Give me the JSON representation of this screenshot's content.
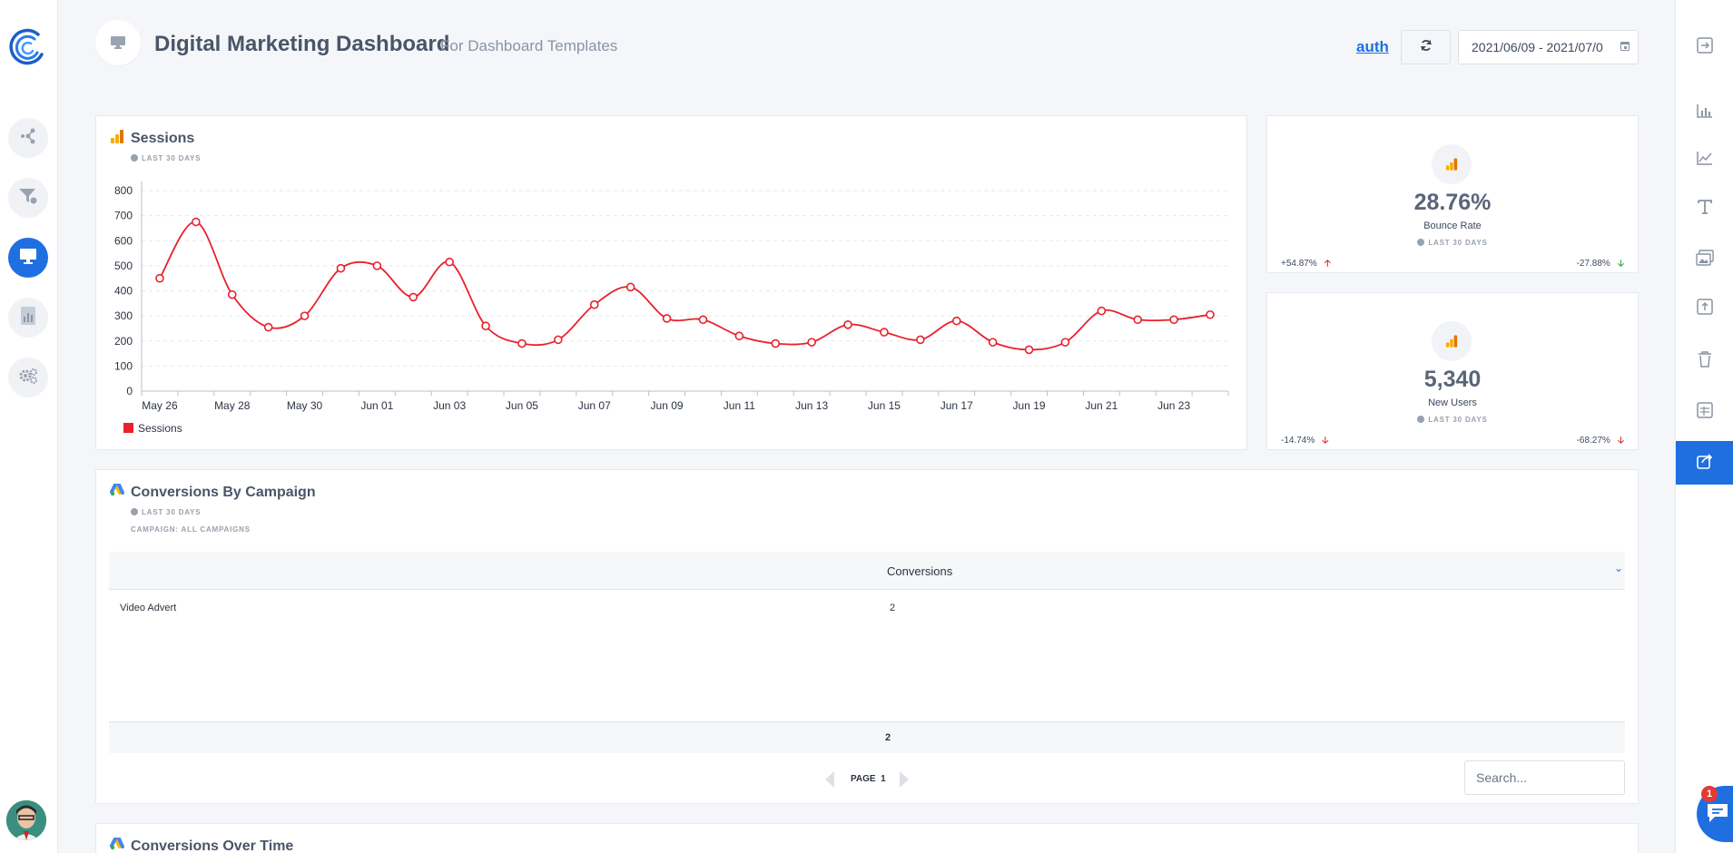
{
  "header": {
    "title": "Digital Marketing Dashboard",
    "subtitle": "For Dashboard Templates",
    "auth_link": "auth",
    "date_range": "2021/06/09 - 2021/07/0"
  },
  "icons": {
    "logo": "logo-icon",
    "left_nav": [
      "connections-icon",
      "funnel-icon",
      "monitor-icon",
      "report-icon",
      "settings-icon"
    ],
    "right_tools": [
      "exit-icon",
      "bar-chart-icon",
      "line-chart-icon",
      "text-icon",
      "image-icon",
      "upload-icon",
      "trash-icon",
      "table-icon",
      "share-icon"
    ]
  },
  "colors": {
    "accent": "#1f6fe0",
    "line": "#e8212d",
    "up_red": "#d9281f",
    "down_green": "#2e9b3c"
  },
  "sessions_card": {
    "title": "Sessions",
    "period": "LAST 30 DAYS"
  },
  "chart_data": {
    "type": "line",
    "title": "Sessions",
    "xlabel": "",
    "ylabel": "",
    "ylim": [
      0,
      800
    ],
    "yticks": [
      0,
      100,
      200,
      300,
      400,
      500,
      600,
      700,
      800
    ],
    "x_tick_labels": [
      "May 26",
      "May 28",
      "May 30",
      "Jun 01",
      "Jun 03",
      "Jun 05",
      "Jun 07",
      "Jun 09",
      "Jun 11",
      "Jun 13",
      "Jun 15",
      "Jun 17",
      "Jun 19",
      "Jun 21",
      "Jun 23"
    ],
    "x": [
      "2021-05-26",
      "2021-05-27",
      "2021-05-28",
      "2021-05-29",
      "2021-05-30",
      "2021-05-31",
      "2021-06-01",
      "2021-06-02",
      "2021-06-03",
      "2021-06-04",
      "2021-06-05",
      "2021-06-06",
      "2021-06-07",
      "2021-06-08",
      "2021-06-09",
      "2021-06-10",
      "2021-06-11",
      "2021-06-12",
      "2021-06-13",
      "2021-06-14",
      "2021-06-15",
      "2021-06-16",
      "2021-06-17",
      "2021-06-18",
      "2021-06-19",
      "2021-06-20",
      "2021-06-21",
      "2021-06-22",
      "2021-06-23",
      "2021-06-24"
    ],
    "series": [
      {
        "name": "Sessions",
        "color": "#e8212d",
        "values": [
          450,
          675,
          385,
          255,
          300,
          490,
          500,
          375,
          515,
          260,
          190,
          205,
          345,
          415,
          290,
          285,
          220,
          190,
          195,
          265,
          235,
          205,
          280,
          195,
          165,
          195,
          320,
          285,
          285,
          305
        ]
      }
    ],
    "grid": true,
    "legend": "bottom-left"
  },
  "bounce_card": {
    "value": "28.76%",
    "label": "Bounce Rate",
    "period": "LAST 30 DAYS",
    "delta_left": "+54.87%",
    "delta_right": "-27.88%"
  },
  "users_card": {
    "value": "5,340",
    "label": "New Users",
    "period": "LAST 30 DAYS",
    "delta_left": "-14.74%",
    "delta_right": "-68.27%"
  },
  "conversions_card": {
    "title": "Conversions By Campaign",
    "period": "LAST 30 DAYS",
    "campaign": "CAMPAIGN: ALL CAMPAIGNS",
    "column_header": "Conversions",
    "rows": [
      {
        "campaign": "Video Advert",
        "conversions": "2"
      }
    ],
    "total": "2",
    "page_label": "PAGE",
    "page_number": "1",
    "search_placeholder": "Search..."
  },
  "over_time_card": {
    "title": "Conversions Over Time"
  },
  "chat": {
    "badge_count": "1"
  }
}
